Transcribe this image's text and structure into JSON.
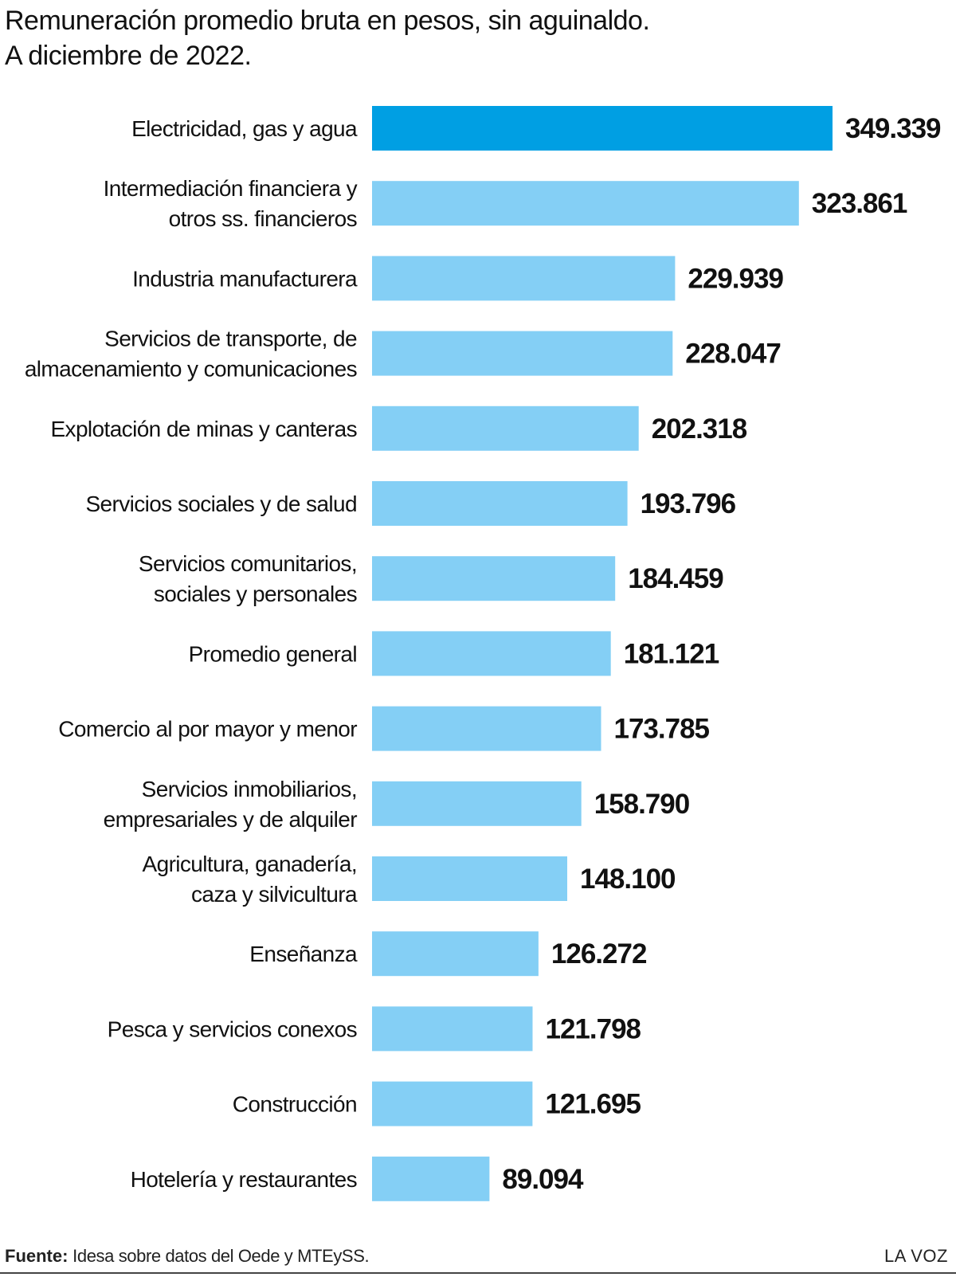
{
  "title": {
    "line1": "Remuneración promedio bruta en pesos, sin aguinaldo.",
    "line2": "A diciembre de 2022."
  },
  "colors": {
    "highlight": "#009fe3",
    "bar": "#84cff5",
    "text": "#111111"
  },
  "chart_data": {
    "type": "bar",
    "orientation": "horizontal",
    "categories": [
      [
        "Electricidad, gas y agua"
      ],
      [
        "Intermediación financiera y",
        "otros ss. financieros"
      ],
      [
        "Industria manufacturera"
      ],
      [
        "Servicios de transporte, de",
        "almacenamiento y comunicaciones"
      ],
      [
        "Explotación de minas y canteras"
      ],
      [
        "Servicios sociales y de salud"
      ],
      [
        "Servicios comunitarios,",
        "sociales y personales"
      ],
      [
        "Promedio general"
      ],
      [
        "Comercio al por mayor y menor"
      ],
      [
        "Servicios inmobiliarios,",
        "empresariales y de alquiler"
      ],
      [
        "Agricultura, ganadería,",
        "caza y silvicultura"
      ],
      [
        "Enseñanza"
      ],
      [
        "Pesca y servicios conexos"
      ],
      [
        "Construcción"
      ],
      [
        "Hotelería y restaurantes"
      ]
    ],
    "values": [
      349339,
      323861,
      229939,
      228047,
      202318,
      193796,
      184459,
      181121,
      173785,
      158790,
      148100,
      126272,
      121798,
      121695,
      89094
    ],
    "value_labels": [
      "349.339",
      "323.861",
      "229.939",
      "228.047",
      "202.318",
      "193.796",
      "184.459",
      "181.121",
      "173.785",
      "158.790",
      "148.100",
      "126.272",
      "121.798",
      "121.695",
      "89.094"
    ],
    "highlight_index": 0,
    "xlim": [
      0,
      349339
    ],
    "grid": false,
    "legend": "none"
  },
  "footer": {
    "source_label": "Fuente:",
    "source_text": " Idesa sobre datos del Oede y MTEySS.",
    "brand": "LA VOZ"
  }
}
